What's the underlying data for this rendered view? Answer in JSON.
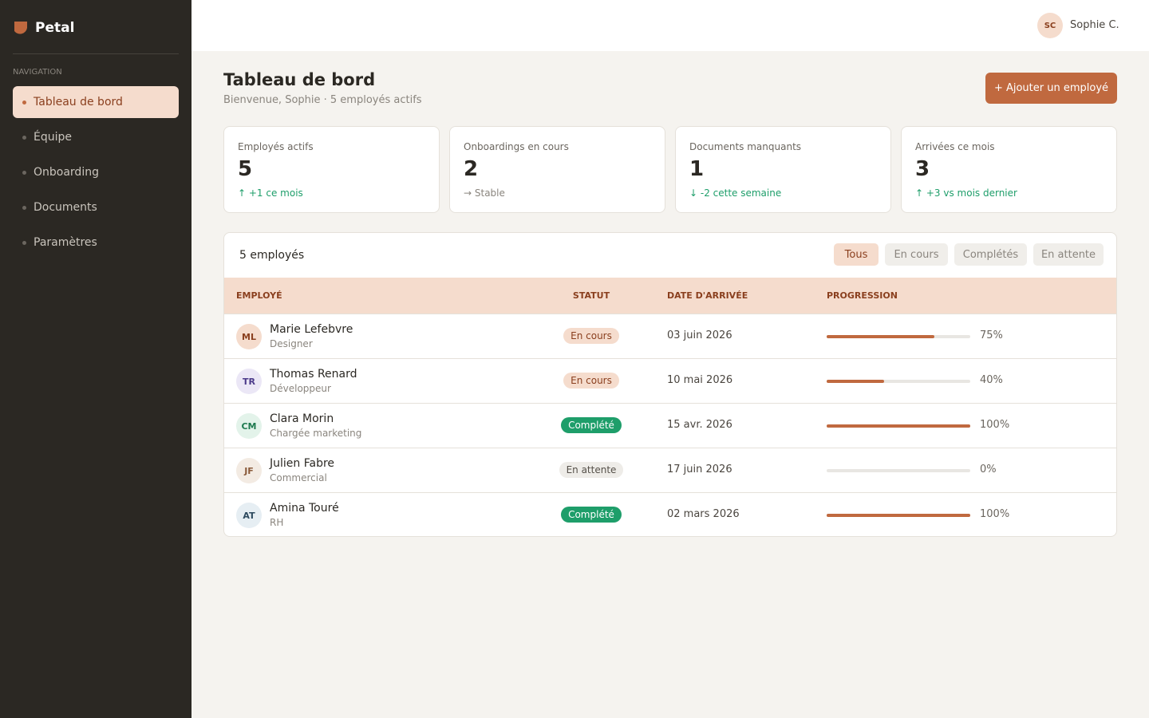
{
  "sidebar": {
    "brand": "Petal",
    "section": "NAVIGATION",
    "active": 0,
    "nav": [
      "Tableau de bord",
      "Équipe",
      "Onboarding",
      "Documents",
      "Paramètres"
    ]
  },
  "topbar": {
    "initials": "SC",
    "user": "Sophie C."
  },
  "header": {
    "title": "Tableau de bord",
    "subtitle": "Bienvenue, Sophie · 5 employés actifs",
    "action": "+ Ajouter un employé"
  },
  "stats": [
    {
      "label": "Employés actifs",
      "value": 5,
      "delta": "↑ +1 ce mois",
      "color": "#1e9e6a"
    },
    {
      "label": "Onboardings en cours",
      "value": 2,
      "delta": "→ Stable",
      "color": "#8a857e"
    },
    {
      "label": "Documents manquants",
      "value": 1,
      "delta": "↓ -2 cette semaine",
      "color": "#1e9e6a"
    },
    {
      "label": "Arrivées ce mois",
      "value": 3,
      "delta": "↑ +3 vs mois dernier",
      "color": "#1e9e6a"
    }
  ],
  "table": {
    "count": "5 employés",
    "filters": [
      "Tous",
      "En cours",
      "Complétés",
      "En attente"
    ],
    "active_filter": 0,
    "columns": [
      "EMPLOYÉ",
      "STATUT",
      "DATE D'ARRIVÉE",
      "PROGRESSION"
    ],
    "rows": [
      {
        "initials": "ML",
        "name": "Marie Lefebvre",
        "role": "Designer",
        "status": "En cours",
        "date": "03 juin 2026",
        "progress": {
          "value": 75,
          "label": "75%"
        },
        "avatar_bg": "#f5dccd",
        "avatar_color": "#8a3f1e",
        "status_bg": "#f5dccd",
        "status_color": "#8a3f1e"
      },
      {
        "initials": "TR",
        "name": "Thomas Renard",
        "role": "Développeur",
        "status": "En cours",
        "date": "10 mai 2026",
        "progress": {
          "value": 40,
          "label": "40%"
        },
        "avatar_bg": "#ebe7f6",
        "avatar_color": "#4b3a8a",
        "status_bg": "#f5dccd",
        "status_color": "#8a3f1e"
      },
      {
        "initials": "CM",
        "name": "Clara Morin",
        "role": "Chargée marketing",
        "status": "Complété",
        "date": "15 avr. 2026",
        "progress": {
          "value": 100,
          "label": "100%"
        },
        "avatar_bg": "#e3f3ea",
        "avatar_color": "#1e7a4f",
        "status_bg": "#1e9e6a",
        "status_color": "#ffffff"
      },
      {
        "initials": "JF",
        "name": "Julien Fabre",
        "role": "Commercial",
        "status": "En attente",
        "date": "17 juin 2026",
        "progress": {
          "value": 0,
          "label": "0%"
        },
        "avatar_bg": "#f3ebe3",
        "avatar_color": "#8a5a3a",
        "status_bg": "#eeece8",
        "status_color": "#555049"
      },
      {
        "initials": "AT",
        "name": "Amina Touré",
        "role": "RH",
        "status": "Complété",
        "date": "02 mars 2026",
        "progress": {
          "value": 100,
          "label": "100%"
        },
        "avatar_bg": "#e6eef3",
        "avatar_color": "#2d4a5f",
        "status_bg": "#1e9e6a",
        "status_color": "#ffffff"
      }
    ]
  }
}
